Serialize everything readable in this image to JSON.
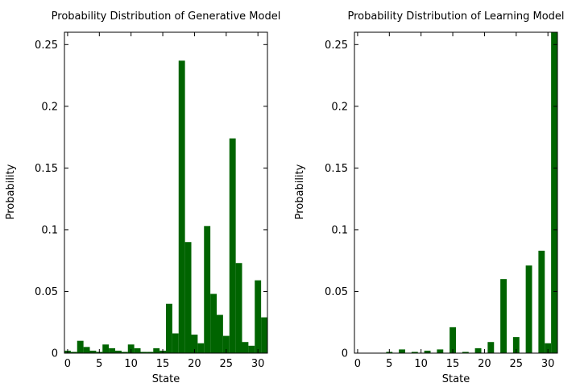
{
  "colors": {
    "bar": "#006400",
    "axis": "#000000",
    "background": "#ffffff"
  },
  "chart_data": [
    {
      "type": "bar",
      "title": "Probability Distribution of Generative Model",
      "xlabel": "State",
      "ylabel": "Probability",
      "xlim": [
        -0.5,
        31.5
      ],
      "ylim": [
        0,
        0.26
      ],
      "xticks": [
        "0",
        "5",
        "10",
        "15",
        "20",
        "25",
        "30"
      ],
      "yticks": [
        "0",
        "0.05",
        "0.1",
        "0.15",
        "0.2",
        "0.25"
      ],
      "grid": false,
      "legend": "none",
      "categories": [
        0,
        1,
        2,
        3,
        4,
        5,
        6,
        7,
        8,
        9,
        10,
        11,
        12,
        13,
        14,
        15,
        16,
        17,
        18,
        19,
        20,
        21,
        22,
        23,
        24,
        25,
        26,
        27,
        28,
        29,
        30,
        31
      ],
      "values": [
        0.002,
        0.001,
        0.01,
        0.005,
        0.002,
        0.001,
        0.007,
        0.004,
        0.002,
        0.001,
        0.007,
        0.004,
        0.001,
        0.001,
        0.004,
        0.002,
        0.04,
        0.016,
        0.237,
        0.09,
        0.015,
        0.008,
        0.103,
        0.048,
        0.031,
        0.014,
        0.174,
        0.073,
        0.009,
        0.006,
        0.059,
        0.029
      ]
    },
    {
      "type": "bar",
      "title": "Probability Distribution of Learning Model",
      "xlabel": "State",
      "ylabel": "Probability",
      "xlim": [
        -0.5,
        31.5
      ],
      "ylim": [
        0,
        0.26
      ],
      "xticks": [
        "0",
        "5",
        "10",
        "15",
        "20",
        "25",
        "30"
      ],
      "yticks": [
        "0",
        "0.05",
        "0.1",
        "0.15",
        "0.2",
        "0.25"
      ],
      "grid": false,
      "legend": "none",
      "categories": [
        0,
        1,
        2,
        3,
        4,
        5,
        6,
        7,
        8,
        9,
        10,
        11,
        12,
        13,
        14,
        15,
        16,
        17,
        18,
        19,
        20,
        21,
        22,
        23,
        24,
        25,
        26,
        27,
        28,
        29,
        30,
        31
      ],
      "values": [
        0,
        0,
        0,
        0,
        0,
        0.001,
        0,
        0.003,
        0,
        0.001,
        0,
        0.002,
        0,
        0.003,
        0,
        0.021,
        0,
        0.001,
        0,
        0.004,
        0,
        0.009,
        0,
        0.06,
        0,
        0.013,
        0,
        0.071,
        0,
        0.083,
        0.008,
        0.26
      ]
    }
  ]
}
